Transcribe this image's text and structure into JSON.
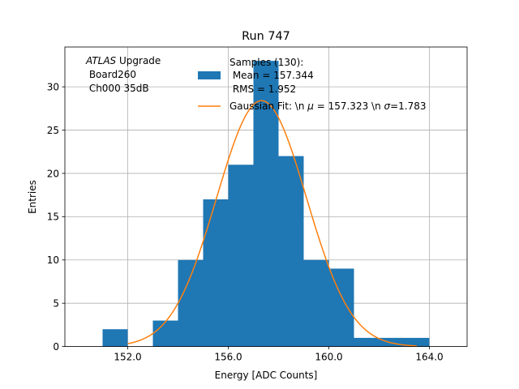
{
  "chart_data": {
    "type": "bar",
    "title": "Run 747",
    "xlabel": "Energy [ADC Counts]",
    "ylabel": "Entries",
    "xlim": [
      149.5,
      165.5
    ],
    "ylim": [
      0,
      34.6
    ],
    "xticks": [
      152,
      156,
      160,
      164
    ],
    "xtick_labels": [
      "152.0",
      "156.0",
      "160.0",
      "164.0"
    ],
    "yticks": [
      0,
      5,
      10,
      15,
      20,
      25,
      30
    ],
    "ytick_labels": [
      "0",
      "5",
      "10",
      "15",
      "20",
      "25",
      "30"
    ],
    "grid": true,
    "annotation": {
      "italic": "ATLAS",
      "normal": " Upgrade",
      "line2": " Board260",
      "line3": " Ch000 35dB"
    },
    "histogram": {
      "bin_edges": [
        151,
        152,
        153,
        154,
        155,
        156,
        157,
        158,
        159,
        160,
        161,
        162,
        163,
        164
      ],
      "counts": [
        2,
        0,
        3,
        10,
        17,
        21,
        33,
        22,
        10,
        9,
        1,
        1,
        1
      ],
      "color": "#1f77b4",
      "legend_line1": "Samples (130):",
      "legend_line2": " Mean = 157.344",
      "legend_line3": " RMS = 1.952"
    },
    "fit": {
      "mu": 157.323,
      "sigma": 1.783,
      "amplitude": 28.4,
      "x_range": [
        152,
        163.5
      ],
      "color": "#ff7f0e",
      "legend_prefix": "Gaussian Fit: \\n ",
      "legend_mu_symbol": "μ",
      "legend_mid": " = 157.323 \\n ",
      "legend_sigma_symbol": "σ",
      "legend_suffix": "=1.783"
    },
    "legend_position": "top-right"
  }
}
